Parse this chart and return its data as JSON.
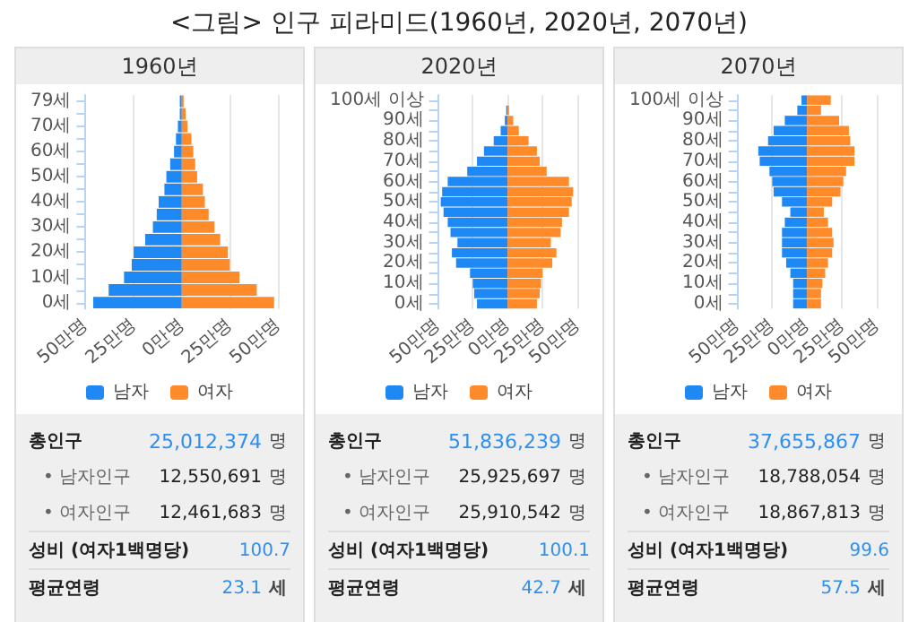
{
  "chart_data": [
    {
      "type": "bar",
      "orientation": "horizontal",
      "stacked": true,
      "title": "1960년",
      "annotations": [
        "<그림> 인구 피라미드(1960년, 2020년, 2070년)"
      ],
      "categories": [
        "79세",
        null,
        "70세",
        null,
        "60세",
        null,
        "50세",
        null,
        "40세",
        null,
        "30세",
        null,
        "20세",
        null,
        "10세",
        null,
        "0세"
      ],
      "series": [
        {
          "name": "남자",
          "color": "#1e88f5",
          "values": [
            -1,
            -1,
            -2,
            -3,
            -4,
            -6,
            -8,
            -9,
            -12,
            -13,
            -15,
            -19,
            -25,
            -26,
            -30,
            -38,
            -46
          ]
        },
        {
          "name": "여자",
          "color": "#ff8a2a",
          "values": [
            1,
            2,
            3,
            5,
            6,
            7,
            8,
            11,
            12,
            14,
            17,
            20,
            24,
            25,
            30,
            39,
            48
          ]
        }
      ],
      "xlim": [
        -50,
        50
      ],
      "xticks": [
        {
          "value": -50,
          "label": "50만명"
        },
        {
          "value": -25,
          "label": "25만명"
        },
        {
          "value": 0,
          "label": "0만명"
        },
        {
          "value": 25,
          "label": "25만명"
        },
        {
          "value": 50,
          "label": "50만명"
        }
      ],
      "grid": "x",
      "legend": "bottom"
    },
    {
      "type": "bar",
      "orientation": "horizontal",
      "stacked": true,
      "title": "2020년",
      "categories": [
        "100세 이상",
        null,
        "90세",
        null,
        "80세",
        null,
        "70세",
        null,
        "60세",
        null,
        "50세",
        null,
        "40세",
        null,
        "30세",
        null,
        "20세",
        null,
        "10세",
        null,
        "0세"
      ],
      "series": [
        {
          "name": "남자",
          "color": "#1e88f5",
          "values": [
            0,
            -1,
            -2,
            -5,
            -10,
            -17,
            -22,
            -29,
            -43,
            -47,
            -48,
            -46,
            -43,
            -41,
            -36,
            -40,
            -37,
            -27,
            -25,
            -24,
            -22
          ]
        },
        {
          "name": "여자",
          "color": "#ff8a2a",
          "values": [
            0,
            1,
            4,
            8,
            15,
            21,
            23,
            28,
            44,
            47,
            46,
            44,
            39,
            38,
            31,
            35,
            32,
            25,
            24,
            23,
            21
          ]
        }
      ],
      "xlim": [
        -50,
        50
      ],
      "xticks": [
        {
          "value": -50,
          "label": "50만명"
        },
        {
          "value": -25,
          "label": "25만명"
        },
        {
          "value": 0,
          "label": "0만명"
        },
        {
          "value": 25,
          "label": "25만명"
        },
        {
          "value": 50,
          "label": "50만명"
        }
      ],
      "grid": "x",
      "legend": "bottom"
    },
    {
      "type": "bar",
      "orientation": "horizontal",
      "stacked": true,
      "title": "2070년",
      "categories": [
        "100세 이상",
        null,
        "90세",
        null,
        "80세",
        null,
        "70세",
        null,
        "60세",
        null,
        "50세",
        null,
        "40세",
        null,
        "30세",
        null,
        "20세",
        null,
        "10세",
        null,
        "0세"
      ],
      "series": [
        {
          "name": "남자",
          "color": "#1e88f5",
          "values": [
            -4,
            -7,
            -16,
            -24,
            -28,
            -35,
            -34,
            -27,
            -25,
            -24,
            -18,
            -12,
            -16,
            -18,
            -18,
            -18,
            -15,
            -12,
            -10,
            -10,
            -10
          ]
        },
        {
          "name": "여자",
          "color": "#ff8a2a",
          "values": [
            17,
            10,
            23,
            30,
            31,
            34,
            34,
            28,
            26,
            24,
            18,
            12,
            15,
            18,
            19,
            18,
            15,
            13,
            11,
            10,
            10
          ]
        }
      ],
      "xlim": [
        -50,
        50
      ],
      "xticks": [
        {
          "value": -50,
          "label": "50만명"
        },
        {
          "value": -25,
          "label": "25만명"
        },
        {
          "value": 0,
          "label": "0만명"
        },
        {
          "value": 25,
          "label": "25만명"
        },
        {
          "value": 50,
          "label": "50만명"
        }
      ],
      "grid": "x",
      "legend": "bottom"
    },
    {
      "type": "other",
      "annotations": [
        "총인구",
        "25,012,374",
        "명",
        "• 남자인구",
        "12,550,691",
        "명",
        "• 여자인구",
        "12,461,683",
        "명",
        "성비 (여자1백명당)",
        "100.7",
        "평균연령",
        "23.1",
        "세"
      ]
    },
    {
      "type": "other",
      "annotations": [
        "총인구",
        "51,836,239",
        "명",
        "• 남자인구",
        "25,925,697",
        "명",
        "• 여자인구",
        "25,910,542",
        "명",
        "성비 (여자1백명당)",
        "100.1",
        "평균연령",
        "42.7",
        "세"
      ]
    },
    {
      "type": "other",
      "annotations": [
        "총인구",
        "37,655,867",
        "명",
        "• 남자인구",
        "18,788,054",
        "명",
        "• 여자인구",
        "18,867,813",
        "명",
        "성비 (여자1백명당)",
        "99.6",
        "평균연령",
        "57.5",
        "세"
      ]
    }
  ]
}
